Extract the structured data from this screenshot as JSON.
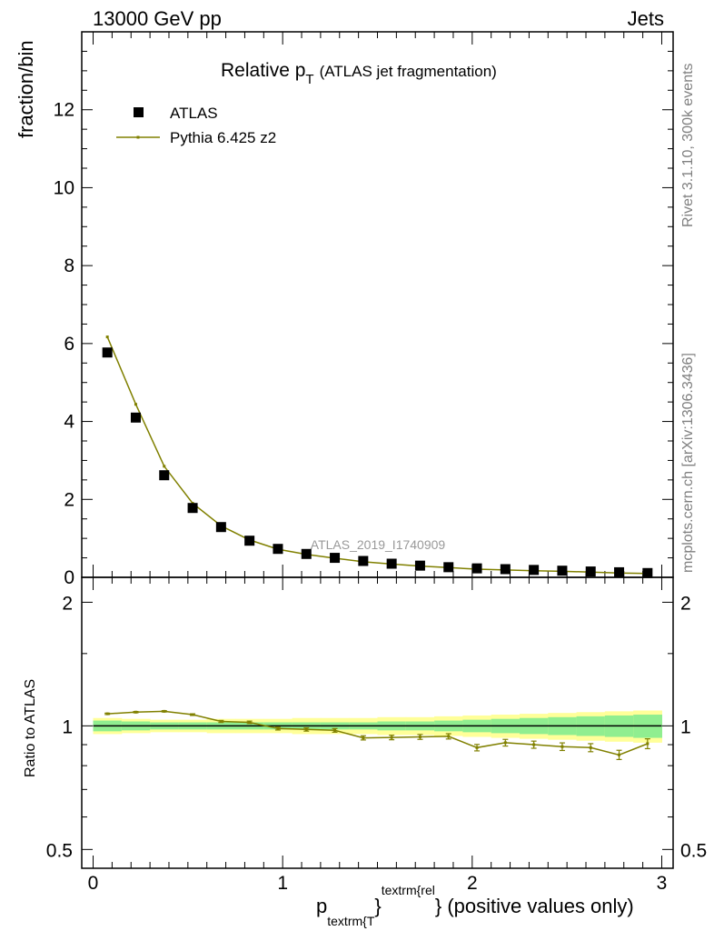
{
  "header": {
    "left": "13000 GeV pp",
    "right": "Jets"
  },
  "side_text": {
    "upper": "Rivet 3.1.10,  300k events",
    "lower": "mcplots.cern.ch [arXiv:1306.3436]"
  },
  "chart_data": [
    {
      "type": "scatter",
      "panel": "main",
      "title_main": "Relative p",
      "title_sub": "T",
      "title_paren": "(ATLAS jet fragmentation)",
      "ylabel": "fraction/bin",
      "watermark": "ATLAS_2019_I1740909",
      "xlim": [
        -0.06,
        3.06
      ],
      "ylim": [
        0,
        14
      ],
      "yticks": [
        0,
        2,
        4,
        6,
        8,
        10,
        12
      ],
      "ytick_labels": [
        "0",
        "2",
        "4",
        "6",
        "8",
        "10",
        "12"
      ],
      "legend_position": "top-left",
      "series": [
        {
          "name": "ATLAS",
          "marker": "square",
          "color": "#000000",
          "x": [
            0.075,
            0.225,
            0.375,
            0.525,
            0.675,
            0.825,
            0.975,
            1.125,
            1.275,
            1.425,
            1.575,
            1.725,
            1.875,
            2.025,
            2.175,
            2.325,
            2.475,
            2.625,
            2.775,
            2.925
          ],
          "y": [
            5.77,
            4.1,
            2.62,
            1.78,
            1.29,
            0.94,
            0.73,
            0.6,
            0.5,
            0.42,
            0.35,
            0.3,
            0.26,
            0.23,
            0.21,
            0.19,
            0.17,
            0.15,
            0.13,
            0.11
          ]
        },
        {
          "name": "Pythia 6.425 z2",
          "marker": "line",
          "color": "#808000",
          "x": [
            0.075,
            0.225,
            0.375,
            0.525,
            0.675,
            0.825,
            0.975,
            1.125,
            1.275,
            1.425,
            1.575,
            1.725,
            1.875,
            2.025,
            2.175,
            2.325,
            2.475,
            2.625,
            2.775,
            2.925
          ],
          "y": [
            6.17,
            4.44,
            2.85,
            1.9,
            1.32,
            0.96,
            0.72,
            0.59,
            0.49,
            0.4,
            0.34,
            0.29,
            0.25,
            0.21,
            0.19,
            0.17,
            0.155,
            0.135,
            0.11,
            0.1
          ]
        }
      ]
    },
    {
      "type": "line",
      "panel": "ratio",
      "ylabel": "Ratio to ATLAS",
      "xlabel_main": "p",
      "xlabel_sub": "textrm{T",
      "xlabel_sup": "textrm{rel",
      "xlabel_tail": "} (positive values only)",
      "ylim": [
        0.45,
        2.3
      ],
      "log_y": true,
      "yticks": [
        0.5,
        1,
        2
      ],
      "ytick_labels": [
        "0.5",
        "1",
        "2"
      ],
      "xticks": [
        0,
        1,
        2,
        3
      ],
      "xtick_labels": [
        "0",
        "1",
        "2",
        "3"
      ],
      "band_inner_color": "#90ee90",
      "band_outer_color": "#ffff99",
      "band_edges": [
        0.0,
        0.15,
        0.3,
        0.45,
        0.6,
        0.75,
        0.9,
        1.05,
        1.2,
        1.35,
        1.5,
        1.65,
        1.8,
        1.95,
        2.1,
        2.25,
        2.4,
        2.55,
        2.7,
        2.85,
        3.0
      ],
      "band_inner_half_width": [
        0.03,
        0.025,
        0.02,
        0.02,
        0.02,
        0.02,
        0.02,
        0.02,
        0.02,
        0.02,
        0.025,
        0.025,
        0.03,
        0.035,
        0.04,
        0.045,
        0.05,
        0.055,
        0.06,
        0.065
      ],
      "band_outer_half_width": [
        0.045,
        0.04,
        0.035,
        0.035,
        0.04,
        0.04,
        0.04,
        0.045,
        0.045,
        0.045,
        0.05,
        0.05,
        0.055,
        0.06,
        0.065,
        0.07,
        0.075,
        0.08,
        0.085,
        0.09
      ],
      "series": [
        {
          "name": "Pythia 6.425 z2",
          "color": "#808000",
          "x": [
            0.075,
            0.225,
            0.375,
            0.525,
            0.675,
            0.825,
            0.975,
            1.125,
            1.275,
            1.425,
            1.575,
            1.725,
            1.875,
            2.025,
            2.175,
            2.325,
            2.475,
            2.625,
            2.775,
            2.925
          ],
          "y": [
            1.07,
            1.08,
            1.085,
            1.065,
            1.025,
            1.02,
            0.985,
            0.98,
            0.975,
            0.935,
            0.937,
            0.94,
            0.943,
            0.885,
            0.91,
            0.9,
            0.89,
            0.885,
            0.85,
            0.905
          ],
          "yerr": [
            0.004,
            0.004,
            0.004,
            0.005,
            0.006,
            0.007,
            0.008,
            0.009,
            0.01,
            0.011,
            0.012,
            0.013,
            0.014,
            0.016,
            0.017,
            0.018,
            0.019,
            0.02,
            0.022,
            0.025
          ]
        }
      ]
    }
  ]
}
